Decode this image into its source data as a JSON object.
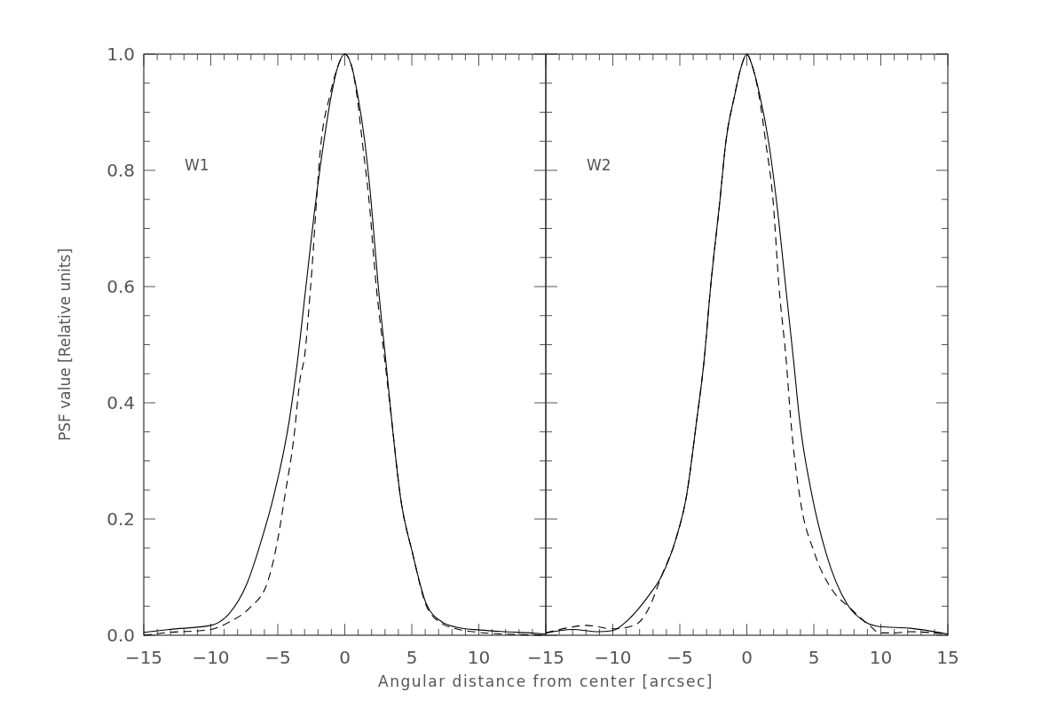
{
  "chart_data": [
    {
      "type": "line",
      "ylabel": "PSF value [Relative units]",
      "xlabel": "Angular distance from center [arcsec]",
      "annotations": [
        "W1"
      ],
      "xlim": [
        -15,
        15
      ],
      "ylim": [
        0,
        1
      ],
      "xticks": [
        -15,
        {
          "value": -14,
          "label": null
        },
        {
          "value": -13,
          "label": null
        },
        {
          "value": -12,
          "label": null
        },
        {
          "value": -11,
          "label": null
        },
        -10,
        {
          "value": -9,
          "label": null
        },
        {
          "value": -8,
          "label": null
        },
        {
          "value": -7,
          "label": null
        },
        {
          "value": -6,
          "label": null
        },
        -5,
        {
          "value": -4,
          "label": null
        },
        {
          "value": -3,
          "label": null
        },
        {
          "value": -2,
          "label": null
        },
        {
          "value": -1,
          "label": null
        },
        0,
        {
          "value": 1,
          "label": null
        },
        {
          "value": 2,
          "label": null
        },
        {
          "value": 3,
          "label": null
        },
        {
          "value": 4,
          "label": null
        },
        5,
        {
          "value": 6,
          "label": null
        },
        {
          "value": 7,
          "label": null
        },
        {
          "value": 8,
          "label": null
        },
        {
          "value": 9,
          "label": null
        },
        10,
        {
          "value": 11,
          "label": null
        },
        {
          "value": 12,
          "label": null
        },
        {
          "value": 13,
          "label": null
        },
        {
          "value": 14,
          "label": null
        },
        {
          "value": 15,
          "label": null
        }
      ],
      "yticks": [
        "0.0",
        {
          "value": 0.05,
          "label": null
        },
        {
          "value": 0.1,
          "label": null
        },
        {
          "value": 0.15,
          "label": null
        },
        {
          "value": 0.2,
          "label": "0.2"
        },
        {
          "value": 0.25,
          "label": null
        },
        {
          "value": 0.3,
          "label": null
        },
        {
          "value": 0.35,
          "label": null
        },
        {
          "value": 0.4,
          "label": "0.4"
        },
        {
          "value": 0.45,
          "label": null
        },
        {
          "value": 0.5,
          "label": null
        },
        {
          "value": 0.55,
          "label": null
        },
        {
          "value": 0.6,
          "label": "0.6"
        },
        {
          "value": 0.65,
          "label": null
        },
        {
          "value": 0.7,
          "label": null
        },
        {
          "value": 0.75,
          "label": null
        },
        {
          "value": 0.8,
          "label": "0.8"
        },
        {
          "value": 0.85,
          "label": null
        },
        {
          "value": 0.9,
          "label": null
        },
        {
          "value": 0.95,
          "label": null
        },
        {
          "value": 1,
          "label": "1.0"
        }
      ],
      "series": [
        {
          "color": "#000000",
          "line_style": "solid",
          "x": [
            -15,
            -13.1,
            -10,
            -8.6,
            -7.3,
            -6.2,
            -5.3,
            -4.14,
            -3.54,
            -2.9,
            -2.15,
            -1.56,
            -1,
            -0.5,
            0,
            0.5,
            0.96,
            1.49,
            1.95,
            2.5,
            3.07,
            3.5,
            4.14,
            5.07,
            6.1,
            7.25,
            8.5,
            10.1,
            12,
            14.5,
            15
          ],
          "values": [
            0.005,
            0.01,
            0.017,
            0.038,
            0.089,
            0.165,
            0.24,
            0.37,
            0.47,
            0.6,
            0.75,
            0.85,
            0.93,
            0.98,
            1,
            0.98,
            0.93,
            0.85,
            0.75,
            0.6,
            0.47,
            0.37,
            0.24,
            0.14,
            0.053,
            0.023,
            0.013,
            0.009,
            0.006,
            0.003,
            0.002
          ]
        },
        {
          "color": "#000000",
          "line_style": "dashed",
          "x": [
            -15,
            -13,
            -10.2,
            -8.6,
            -7.1,
            -5.8,
            -5,
            -4.47,
            -3.8,
            -3.34,
            -3,
            -2.55,
            -1.76,
            -1.1,
            -0.5,
            0,
            0.5,
            0.9,
            1.3,
            1.8,
            2.35,
            3,
            3.5,
            4.14,
            5.07,
            6.1,
            7.25,
            8.5,
            10,
            12,
            15
          ],
          "values": [
            0,
            0.005,
            0.009,
            0.023,
            0.047,
            0.089,
            0.165,
            0.24,
            0.34,
            0.44,
            0.48,
            0.6,
            0.85,
            0.93,
            0.98,
            1,
            0.98,
            0.93,
            0.85,
            0.75,
            0.6,
            0.47,
            0.37,
            0.24,
            0.14,
            0.05,
            0.02,
            0.01,
            0.005,
            0.002,
            0
          ]
        }
      ],
      "tick_labels": "xy"
    },
    {
      "type": "line",
      "annotations": [
        "W2"
      ],
      "xlim": [
        -15,
        15
      ],
      "ylim": [
        0,
        1
      ],
      "xticks": [
        -15,
        {
          "value": -14,
          "label": null
        },
        {
          "value": -13,
          "label": null
        },
        {
          "value": -12,
          "label": null
        },
        {
          "value": -11,
          "label": null
        },
        -10,
        {
          "value": -9,
          "label": null
        },
        {
          "value": -8,
          "label": null
        },
        {
          "value": -7,
          "label": null
        },
        {
          "value": -6,
          "label": null
        },
        -5,
        {
          "value": -4,
          "label": null
        },
        {
          "value": -3,
          "label": null
        },
        {
          "value": -2,
          "label": null
        },
        {
          "value": -1,
          "label": null
        },
        0,
        {
          "value": 1,
          "label": null
        },
        {
          "value": 2,
          "label": null
        },
        {
          "value": 3,
          "label": null
        },
        {
          "value": 4,
          "label": null
        },
        5,
        {
          "value": 6,
          "label": null
        },
        {
          "value": 7,
          "label": null
        },
        {
          "value": 8,
          "label": null
        },
        {
          "value": 9,
          "label": null
        },
        10,
        {
          "value": 11,
          "label": null
        },
        {
          "value": 12,
          "label": null
        },
        {
          "value": 13,
          "label": null
        },
        {
          "value": 14,
          "label": null
        },
        15
      ],
      "yticks": [
        {
          "value": 0,
          "label": null
        },
        {
          "value": 0.05,
          "label": null
        },
        {
          "value": 0.1,
          "label": null
        },
        {
          "value": 0.15,
          "label": null
        },
        {
          "value": 0.2,
          "label": null
        },
        {
          "value": 0.25,
          "label": null
        },
        {
          "value": 0.3,
          "label": null
        },
        {
          "value": 0.35,
          "label": null
        },
        {
          "value": 0.4,
          "label": null
        },
        {
          "value": 0.45,
          "label": null
        },
        {
          "value": 0.5,
          "label": null
        },
        {
          "value": 0.55,
          "label": null
        },
        {
          "value": 0.6,
          "label": null
        },
        {
          "value": 0.65,
          "label": null
        },
        {
          "value": 0.7,
          "label": null
        },
        {
          "value": 0.75,
          "label": null
        },
        {
          "value": 0.8,
          "label": null
        },
        {
          "value": 0.85,
          "label": null
        },
        {
          "value": 0.9,
          "label": null
        },
        {
          "value": 0.95,
          "label": null
        },
        {
          "value": 1,
          "label": null
        }
      ],
      "series": [
        {
          "color": "#000000",
          "line_style": "solid",
          "x": [
            -15,
            -13,
            -11.1,
            -10,
            -8.84,
            -7.3,
            -6.4,
            -5.3,
            -4.5,
            -3.74,
            -3.2,
            -2.7,
            -2,
            -1.56,
            -0.9,
            -0.4,
            0,
            0.4,
            0.96,
            1.62,
            2.2,
            2.9,
            3.5,
            3.94,
            4.87,
            5.93,
            7.5,
            8.84,
            9.9,
            12.2,
            15
          ],
          "values": [
            0.004,
            0.01,
            0.006,
            0.008,
            0.027,
            0.069,
            0.1,
            0.165,
            0.24,
            0.37,
            0.47,
            0.6,
            0.75,
            0.85,
            0.93,
            0.98,
            1,
            0.98,
            0.93,
            0.85,
            0.75,
            0.6,
            0.47,
            0.37,
            0.24,
            0.14,
            0.053,
            0.023,
            0.015,
            0.012,
            0.002
          ]
        },
        {
          "color": "#000000",
          "line_style": "dashed",
          "x": [
            -15,
            -13.3,
            -12,
            -10,
            -8.4,
            -7.3,
            -6.4,
            -5.3,
            -4.5,
            -3.74,
            -3.2,
            -2.7,
            -2,
            -1.56,
            -0.9,
            -0.4,
            0,
            0.4,
            0.9,
            1.4,
            1.95,
            2.4,
            2.95,
            3.28,
            3.94,
            5.07,
            6.4,
            7.7,
            9.24,
            9.9,
            11,
            12.2,
            15
          ],
          "values": [
            0.004,
            0.013,
            0.017,
            0.011,
            0.017,
            0.047,
            0.1,
            0.165,
            0.24,
            0.37,
            0.47,
            0.6,
            0.75,
            0.85,
            0.93,
            0.98,
            1,
            0.98,
            0.93,
            0.85,
            0.75,
            0.6,
            0.47,
            0.37,
            0.24,
            0.14,
            0.077,
            0.047,
            0.015,
            0.004,
            0.004,
            0.006,
            0.002
          ]
        }
      ],
      "tick_labels": "x"
    }
  ]
}
